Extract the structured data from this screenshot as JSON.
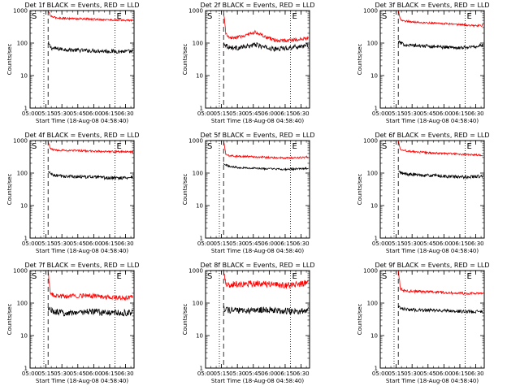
{
  "colors": {
    "events": "#000000",
    "lld": "#ff0000",
    "background": "#ffffff",
    "axes": "#000000"
  },
  "chart_data": [
    {
      "type": "line",
      "title": "Det 1f BLACK = Events, RED = LLD",
      "xlabel": "Start Time (18-Aug-08 04:58:40)",
      "ylabel": "Counts/sec",
      "yscale": "log",
      "ylim": [
        1,
        1000
      ],
      "xlim": [
        "05:00",
        "06:38"
      ],
      "xticklabels": [
        "05:00",
        "05:15",
        "05:30",
        "05:45",
        "06:00",
        "06:15",
        "06:30"
      ],
      "yticklabels": [
        "1",
        "10",
        "100",
        "1000"
      ],
      "markers": {
        "start": "S",
        "end": "E",
        "start_time": "05:17",
        "end_time": "06:20"
      },
      "dotted_lines": [
        "05:13",
        "06:20"
      ],
      "series": [
        {
          "name": "Events",
          "color": "black",
          "x": [
            "05:17",
            "05:20",
            "05:30",
            "05:45",
            "06:00",
            "06:15",
            "06:30",
            "06:37"
          ],
          "y": [
            100,
            70,
            65,
            60,
            58,
            56,
            55,
            55
          ],
          "noise": 0.06
        },
        {
          "name": "LLD",
          "color": "red",
          "x": [
            "05:17",
            "05:19",
            "05:22",
            "05:30",
            "05:45",
            "06:00",
            "06:15",
            "06:30",
            "06:37"
          ],
          "y": [
            1000,
            700,
            620,
            580,
            560,
            540,
            520,
            500,
            500
          ],
          "noise": 0.03
        }
      ]
    },
    {
      "type": "line",
      "title": "Det 2f BLACK = Events, RED = LLD",
      "xlabel": "Start Time (18-Aug-08 04:58:40)",
      "ylabel": "Counts/sec",
      "yscale": "log",
      "ylim": [
        1,
        1000
      ],
      "xlim": [
        "05:00",
        "06:38"
      ],
      "xticklabels": [
        "05:00",
        "05:15",
        "05:30",
        "05:45",
        "06:00",
        "06:15",
        "06:30"
      ],
      "yticklabels": [
        "1",
        "10",
        "100",
        "1000"
      ],
      "markers": {
        "start": "S",
        "end": "E",
        "start_time": "05:17",
        "end_time": "06:20"
      },
      "dotted_lines": [
        "05:13",
        "06:20"
      ],
      "series": [
        {
          "name": "Events",
          "color": "black",
          "x": [
            "05:17",
            "05:22",
            "05:30",
            "05:40",
            "05:47",
            "05:55",
            "06:05",
            "06:15",
            "06:30",
            "06:37"
          ],
          "y": [
            100,
            75,
            70,
            80,
            90,
            75,
            65,
            70,
            80,
            85
          ],
          "noise": 0.07
        },
        {
          "name": "LLD",
          "color": "red",
          "x": [
            "05:17",
            "05:19",
            "05:22",
            "05:30",
            "05:40",
            "05:47",
            "05:55",
            "06:05",
            "06:15",
            "06:30",
            "06:37"
          ],
          "y": [
            1000,
            200,
            140,
            150,
            180,
            220,
            160,
            120,
            120,
            130,
            140
          ],
          "noise": 0.05
        }
      ]
    },
    {
      "type": "line",
      "title": "Det 3f BLACK = Events, RED = LLD",
      "xlabel": "Start Time (18-Aug-08 04:58:40)",
      "ylabel": "Counts/sec",
      "yscale": "log",
      "ylim": [
        1,
        1000
      ],
      "xlim": [
        "05:00",
        "06:38"
      ],
      "xticklabels": [
        "05:00",
        "05:15",
        "05:30",
        "05:45",
        "06:00",
        "06:15",
        "06:30"
      ],
      "yticklabels": [
        "1",
        "10",
        "100",
        "1000"
      ],
      "markers": {
        "start": "S",
        "end": "E",
        "start_time": "05:17",
        "end_time": "06:20"
      },
      "dotted_lines": [
        "05:13",
        "06:20"
      ],
      "series": [
        {
          "name": "Events",
          "color": "black",
          "x": [
            "05:17",
            "05:22",
            "05:30",
            "05:45",
            "06:00",
            "06:15",
            "06:30",
            "06:37"
          ],
          "y": [
            110,
            90,
            85,
            80,
            75,
            72,
            78,
            85
          ],
          "noise": 0.05
        },
        {
          "name": "LLD",
          "color": "red",
          "x": [
            "05:17",
            "05:19",
            "05:22",
            "05:30",
            "05:45",
            "06:00",
            "06:15",
            "06:30",
            "06:37"
          ],
          "y": [
            1000,
            550,
            480,
            450,
            420,
            400,
            370,
            340,
            350
          ],
          "noise": 0.03
        }
      ]
    },
    {
      "type": "line",
      "title": "Det 4f BLACK = Events, RED = LLD",
      "xlabel": "Start Time (18-Aug-08 04:58:40)",
      "ylabel": "Counts/sec",
      "yscale": "log",
      "ylim": [
        1,
        1000
      ],
      "xlim": [
        "05:00",
        "06:38"
      ],
      "xticklabels": [
        "05:00",
        "05:15",
        "05:30",
        "05:45",
        "06:00",
        "06:15",
        "06:30"
      ],
      "yticklabels": [
        "1",
        "10",
        "100",
        "1000"
      ],
      "markers": {
        "start": "S",
        "end": "E",
        "start_time": "05:17",
        "end_time": "06:20"
      },
      "dotted_lines": [
        "05:13",
        "06:20"
      ],
      "series": [
        {
          "name": "Events",
          "color": "black",
          "x": [
            "05:17",
            "05:22",
            "05:30",
            "05:45",
            "06:00",
            "06:15",
            "06:30",
            "06:37"
          ],
          "y": [
            110,
            85,
            80,
            78,
            75,
            70,
            72,
            75
          ],
          "noise": 0.05
        },
        {
          "name": "LLD",
          "color": "red",
          "x": [
            "05:17",
            "05:19",
            "05:22",
            "05:30",
            "05:45",
            "06:00",
            "06:15",
            "06:30",
            "06:37"
          ],
          "y": [
            1000,
            560,
            520,
            500,
            490,
            470,
            460,
            450,
            450
          ],
          "noise": 0.03
        }
      ]
    },
    {
      "type": "line",
      "title": "Det 5f BLACK = Events, RED = LLD",
      "xlabel": "Start Time (18-Aug-08 04:58:40)",
      "ylabel": "Counts/sec",
      "yscale": "log",
      "ylim": [
        1,
        1000
      ],
      "xlim": [
        "05:00",
        "06:38"
      ],
      "xticklabels": [
        "05:00",
        "05:15",
        "05:30",
        "05:45",
        "06:00",
        "06:15",
        "06:30"
      ],
      "yticklabels": [
        "1",
        "10",
        "100",
        "1000"
      ],
      "markers": {
        "start": "S",
        "end": "E",
        "start_time": "05:17",
        "end_time": "06:20"
      },
      "dotted_lines": [
        "05:13",
        "06:20"
      ],
      "series": [
        {
          "name": "Events",
          "color": "black",
          "x": [
            "05:17",
            "05:22",
            "05:30",
            "05:45",
            "06:00",
            "06:15",
            "06:30",
            "06:37"
          ],
          "y": [
            200,
            160,
            150,
            140,
            135,
            130,
            135,
            140
          ],
          "noise": 0.03
        },
        {
          "name": "LLD",
          "color": "red",
          "x": [
            "05:17",
            "05:19",
            "05:22",
            "05:30",
            "05:45",
            "06:00",
            "06:15",
            "06:30",
            "06:37"
          ],
          "y": [
            1000,
            380,
            340,
            330,
            320,
            300,
            290,
            300,
            310
          ],
          "noise": 0.03
        }
      ]
    },
    {
      "type": "line",
      "title": "Det 6f BLACK = Events, RED = LLD",
      "xlabel": "Start Time (18-Aug-08 04:58:40)",
      "ylabel": "Counts/sec",
      "yscale": "log",
      "ylim": [
        1,
        1000
      ],
      "xlim": [
        "05:00",
        "06:38"
      ],
      "xticklabels": [
        "05:00",
        "05:15",
        "05:30",
        "05:45",
        "06:00",
        "06:15",
        "06:30"
      ],
      "yticklabels": [
        "1",
        "10",
        "100",
        "1000"
      ],
      "markers": {
        "start": "S",
        "end": "E",
        "start_time": "05:17",
        "end_time": "06:20"
      },
      "dotted_lines": [
        "05:13",
        "06:20"
      ],
      "series": [
        {
          "name": "Events",
          "color": "black",
          "x": [
            "05:17",
            "05:22",
            "05:30",
            "05:45",
            "06:00",
            "06:15",
            "06:30",
            "06:37"
          ],
          "y": [
            110,
            95,
            90,
            85,
            80,
            75,
            78,
            80
          ],
          "noise": 0.05
        },
        {
          "name": "LLD",
          "color": "red",
          "x": [
            "05:17",
            "05:19",
            "05:22",
            "05:30",
            "05:45",
            "06:00",
            "06:15",
            "06:30",
            "06:37"
          ],
          "y": [
            1000,
            560,
            500,
            460,
            420,
            400,
            380,
            360,
            350
          ],
          "noise": 0.03
        }
      ]
    },
    {
      "type": "line",
      "title": "Det 7f BLACK = Events, RED = LLD",
      "xlabel": "Start Time (18-Aug-08 04:58:40)",
      "ylabel": "Counts/sec",
      "yscale": "log",
      "ylim": [
        1,
        1000
      ],
      "xlim": [
        "05:00",
        "06:38"
      ],
      "xticklabels": [
        "05:00",
        "05:15",
        "05:30",
        "05:45",
        "06:00",
        "06:15",
        "06:30"
      ],
      "yticklabels": [
        "1",
        "10",
        "100",
        "1000"
      ],
      "markers": {
        "start": "S",
        "end": "E",
        "start_time": "05:17",
        "end_time": "06:20"
      },
      "dotted_lines": [
        "05:13",
        "06:20"
      ],
      "series": [
        {
          "name": "Events",
          "color": "black",
          "x": [
            "05:17",
            "05:22",
            "05:30",
            "05:45",
            "06:00",
            "06:15",
            "06:30",
            "06:37"
          ],
          "y": [
            70,
            55,
            50,
            52,
            55,
            50,
            50,
            52
          ],
          "noise": 0.1
        },
        {
          "name": "LLD",
          "color": "red",
          "x": [
            "05:17",
            "05:19",
            "05:22",
            "05:30",
            "05:45",
            "06:00",
            "06:15",
            "06:30",
            "06:37"
          ],
          "y": [
            1000,
            200,
            170,
            160,
            170,
            165,
            150,
            145,
            150
          ],
          "noise": 0.07
        }
      ]
    },
    {
      "type": "line",
      "title": "Det 8f BLACK = Events, RED = LLD",
      "xlabel": "Start Time (18-Aug-08 04:58:40)",
      "ylabel": "Counts/sec",
      "yscale": "log",
      "ylim": [
        1,
        1000
      ],
      "xlim": [
        "05:00",
        "06:38"
      ],
      "xticklabels": [
        "05:00",
        "05:15",
        "05:30",
        "05:45",
        "06:00",
        "06:15",
        "06:30"
      ],
      "yticklabels": [
        "1",
        "10",
        "100",
        "1000"
      ],
      "markers": {
        "start": "S",
        "end": "E",
        "start_time": "05:17",
        "end_time": "06:20"
      },
      "dotted_lines": [
        "05:13",
        "06:20"
      ],
      "series": [
        {
          "name": "Events",
          "color": "black",
          "x": [
            "05:17",
            "05:22",
            "05:30",
            "05:45",
            "06:00",
            "06:15",
            "06:30",
            "06:37"
          ],
          "y": [
            70,
            60,
            58,
            60,
            62,
            58,
            55,
            60
          ],
          "noise": 0.1
        },
        {
          "name": "LLD",
          "color": "red",
          "x": [
            "05:17",
            "05:19",
            "05:22",
            "05:30",
            "05:45",
            "06:00",
            "06:15",
            "06:30",
            "06:37"
          ],
          "y": [
            1000,
            380,
            360,
            380,
            400,
            380,
            350,
            380,
            450
          ],
          "noise": 0.1
        }
      ]
    },
    {
      "type": "line",
      "title": "Det 9f BLACK = Events, RED = LLD",
      "xlabel": "Start Time (18-Aug-08 04:58:40)",
      "ylabel": "Counts/sec",
      "yscale": "log",
      "ylim": [
        1,
        1000
      ],
      "xlim": [
        "05:00",
        "06:38"
      ],
      "xticklabels": [
        "05:00",
        "05:15",
        "05:30",
        "05:45",
        "06:00",
        "06:15",
        "06:30"
      ],
      "yticklabels": [
        "1",
        "10",
        "100",
        "1000"
      ],
      "markers": {
        "start": "S",
        "end": "E",
        "start_time": "05:17",
        "end_time": "06:20"
      },
      "dotted_lines": [
        "05:13",
        "06:20"
      ],
      "series": [
        {
          "name": "Events",
          "color": "black",
          "x": [
            "05:17",
            "05:22",
            "05:30",
            "05:45",
            "06:00",
            "06:15",
            "06:30",
            "06:37"
          ],
          "y": [
            80,
            65,
            62,
            60,
            58,
            55,
            55,
            55
          ],
          "noise": 0.05
        },
        {
          "name": "LLD",
          "color": "red",
          "x": [
            "05:17",
            "05:19",
            "05:22",
            "05:30",
            "05:45",
            "06:00",
            "06:15",
            "06:30",
            "06:37"
          ],
          "y": [
            1000,
            280,
            240,
            230,
            220,
            210,
            200,
            195,
            195
          ],
          "noise": 0.04
        }
      ]
    }
  ]
}
